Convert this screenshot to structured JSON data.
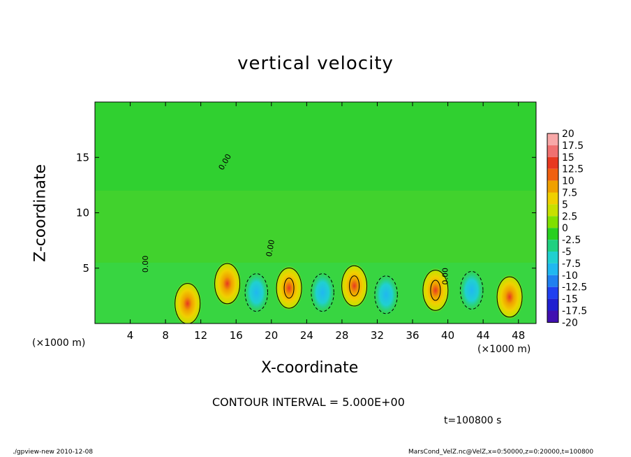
{
  "chart_data": {
    "type": "heatmap",
    "title": "vertical velocity",
    "xlabel": "X-coordinate",
    "ylabel": "Z-coordinate",
    "x_unit_label": "(×1000 m)",
    "xlim": [
      0,
      50
    ],
    "ylim": [
      0,
      20
    ],
    "x_ticks": [
      4,
      8,
      12,
      16,
      20,
      24,
      28,
      32,
      36,
      40,
      44,
      48
    ],
    "y_ticks": [
      5,
      10,
      15
    ],
    "contour_label": "0.00",
    "colorbar": {
      "levels": [
        20,
        17.5,
        15,
        12.5,
        10,
        7.5,
        5,
        2.5,
        0,
        -2.5,
        -5,
        -7.5,
        -10,
        -12.5,
        -15,
        -17.5,
        -20
      ],
      "colors": [
        "#f8a8a8",
        "#f07070",
        "#e83820",
        "#f06010",
        "#f0a000",
        "#f0d000",
        "#c8e000",
        "#80e000",
        "#28d020",
        "#20d080",
        "#20d0d0",
        "#20b8f0",
        "#2080f0",
        "#2040f0",
        "#2020d0",
        "#4010b0",
        "#7010b0"
      ]
    },
    "features": [
      {
        "type": "updraft",
        "x": 10.5,
        "z": 1.8,
        "peak": 8
      },
      {
        "type": "updraft",
        "x": 15.0,
        "z": 3.6,
        "peak": 8
      },
      {
        "type": "downdraft",
        "x": 18.3,
        "z": 2.8,
        "peak": -5
      },
      {
        "type": "updraft",
        "x": 22.0,
        "z": 3.2,
        "peak": 12
      },
      {
        "type": "downdraft",
        "x": 25.8,
        "z": 2.8,
        "peak": -5
      },
      {
        "type": "updraft",
        "x": 29.4,
        "z": 3.4,
        "peak": 10
      },
      {
        "type": "downdraft",
        "x": 33.0,
        "z": 2.6,
        "peak": -4
      },
      {
        "type": "updraft",
        "x": 38.6,
        "z": 3.0,
        "peak": 12
      },
      {
        "type": "downdraft",
        "x": 42.7,
        "z": 3.0,
        "peak": -4
      },
      {
        "type": "updraft",
        "x": 47.0,
        "z": 2.4,
        "peak": 6
      }
    ]
  },
  "contour_interval_text": "CONTOUR INTERVAL = 5.000E+00",
  "time_text": "t=100800  s",
  "footer_left": "./gpview-new  2010-12-08",
  "footer_right": "MarsCond_VelZ.nc@VelZ,x=0:50000,z=0:20000,t=100800"
}
